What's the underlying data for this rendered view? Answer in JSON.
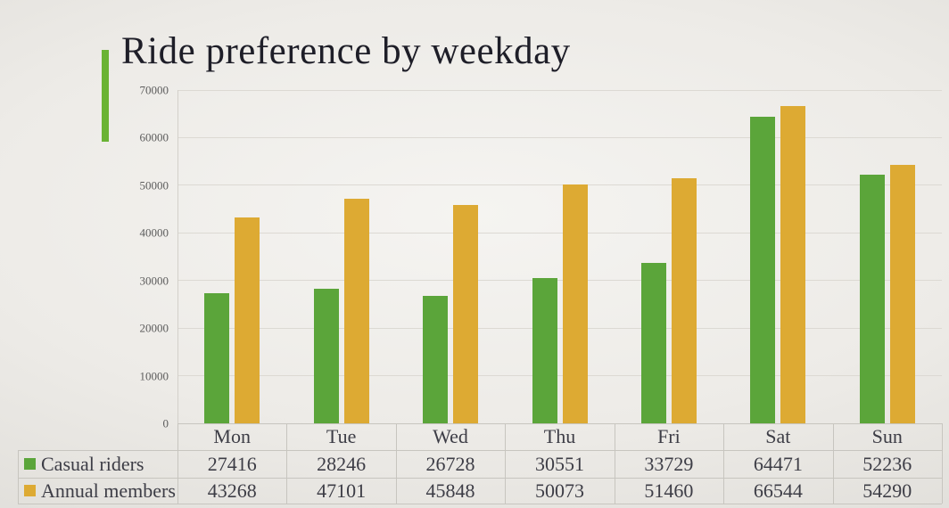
{
  "title": "Ride preference by weekday",
  "colors": {
    "casual": "#5ba53a",
    "member": "#ddaa33",
    "accent_bar": "#6ab334",
    "title_text": "#1e1e28",
    "axis_text": "#5c5c5c",
    "table_text": "#3d3d46",
    "gridline": "#dcd9d3",
    "table_border": "#c7c5bf",
    "axis_border": "#d3d0ca"
  },
  "chart_data": {
    "type": "bar",
    "title": "Ride preference by weekday",
    "categories": [
      "Mon",
      "Tue",
      "Wed",
      "Thu",
      "Fri",
      "Sat",
      "Sun"
    ],
    "series": [
      {
        "name": "Casual riders",
        "color_key": "casual",
        "values": [
          27416,
          28246,
          26728,
          30551,
          33729,
          64471,
          52236
        ]
      },
      {
        "name": "Annual members",
        "color_key": "member",
        "values": [
          43268,
          47101,
          45848,
          50073,
          51460,
          66544,
          54290
        ]
      }
    ],
    "xlabel": "",
    "ylabel": "",
    "ylim": [
      0,
      70000
    ],
    "ytick_step": 10000,
    "yticks": [
      "0",
      "10000",
      "20000",
      "30000",
      "40000",
      "50000",
      "60000",
      "70000"
    ],
    "grid": true,
    "legend_position": "table-rows-left",
    "data_table_shown": true
  }
}
